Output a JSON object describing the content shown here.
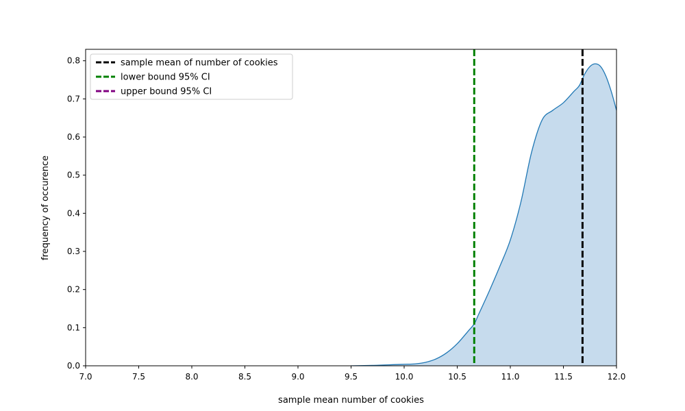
{
  "chart_data": {
    "type": "area",
    "xlabel": "sample mean number of cookies",
    "ylabel": "frequency of occurence",
    "xlim": [
      7.0,
      12.0
    ],
    "ylim": [
      0.0,
      0.83
    ],
    "xticks": [
      "7.0",
      "7.5",
      "8.0",
      "8.5",
      "9.0",
      "9.5",
      "10.0",
      "10.5",
      "11.0",
      "11.5",
      "12.0"
    ],
    "yticks": [
      "0.0",
      "0.1",
      "0.2",
      "0.3",
      "0.4",
      "0.5",
      "0.6",
      "0.7",
      "0.8"
    ],
    "grid": false,
    "legend_position": "top-left",
    "density": {
      "color": "#1f77b4",
      "fill_color": "#c6dbed",
      "x": [
        9.5,
        9.7,
        9.9,
        10.0,
        10.1,
        10.2,
        10.3,
        10.4,
        10.5,
        10.6,
        10.66,
        10.7,
        10.8,
        10.9,
        11.0,
        11.1,
        11.2,
        11.3,
        11.4,
        11.5,
        11.6,
        11.65,
        11.7,
        11.75,
        11.8,
        11.85,
        11.9,
        11.95,
        12.0
      ],
      "y": [
        0.0,
        0.001,
        0.003,
        0.004,
        0.005,
        0.009,
        0.018,
        0.034,
        0.058,
        0.09,
        0.11,
        0.134,
        0.195,
        0.26,
        0.33,
        0.43,
        0.56,
        0.645,
        0.67,
        0.69,
        0.72,
        0.735,
        0.765,
        0.785,
        0.792,
        0.785,
        0.76,
        0.72,
        0.67
      ]
    },
    "lines": [
      {
        "name": "sample mean of number of cookies",
        "x": 11.68,
        "color": "#000000"
      },
      {
        "name": "lower bound 95% CI",
        "x": 10.66,
        "color": "#008000"
      },
      {
        "name": "upper bound 95% CI",
        "x": null,
        "color": "#800080"
      }
    ]
  }
}
